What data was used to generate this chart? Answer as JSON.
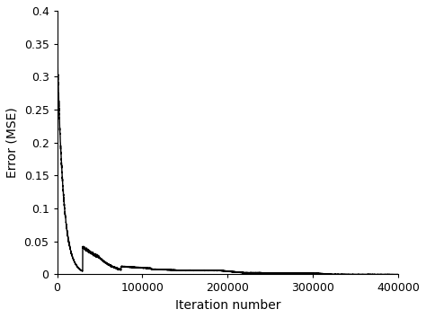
{
  "title": "",
  "xlabel": "Iteration number",
  "ylabel": "Error (MSE)",
  "xlim": [
    0,
    400000
  ],
  "ylim": [
    0,
    0.4
  ],
  "xticks": [
    0,
    100000,
    200000,
    300000,
    400000
  ],
  "yticks": [
    0,
    0.05,
    0.1,
    0.15,
    0.2,
    0.25,
    0.3,
    0.35,
    0.4
  ],
  "line_color": "#000000",
  "line_width": 1.0,
  "background_color": "#ffffff",
  "xlabel_fontsize": 10,
  "ylabel_fontsize": 10,
  "tick_fontsize": 9,
  "figsize": [
    4.74,
    3.54
  ],
  "dpi": 100
}
